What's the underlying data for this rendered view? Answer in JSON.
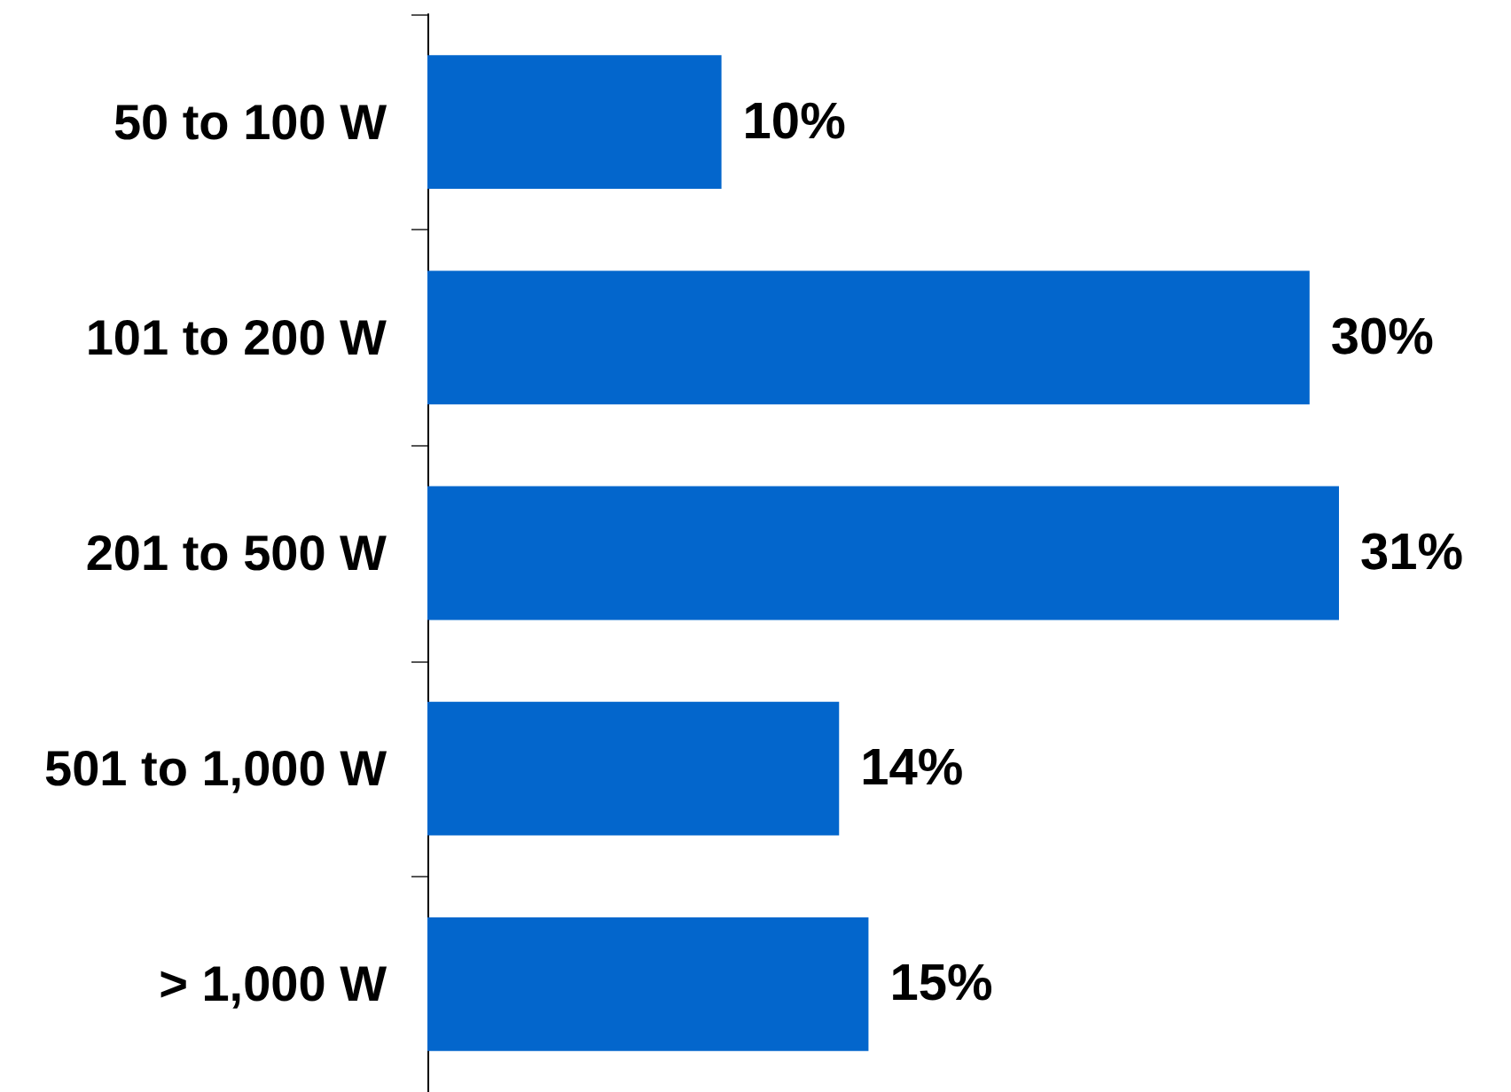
{
  "chart_data": {
    "type": "bar",
    "orientation": "horizontal",
    "categories": [
      "50 to 100 W",
      "101 to 200 W",
      "201 to 500 W",
      "501 to 1,000 W",
      "> 1,000 W"
    ],
    "values": [
      10,
      30,
      31,
      14,
      15
    ],
    "value_labels": [
      "10%",
      "30%",
      "31%",
      "14%",
      "15%"
    ],
    "color": "#0366cc",
    "tick_labels": "y"
  }
}
